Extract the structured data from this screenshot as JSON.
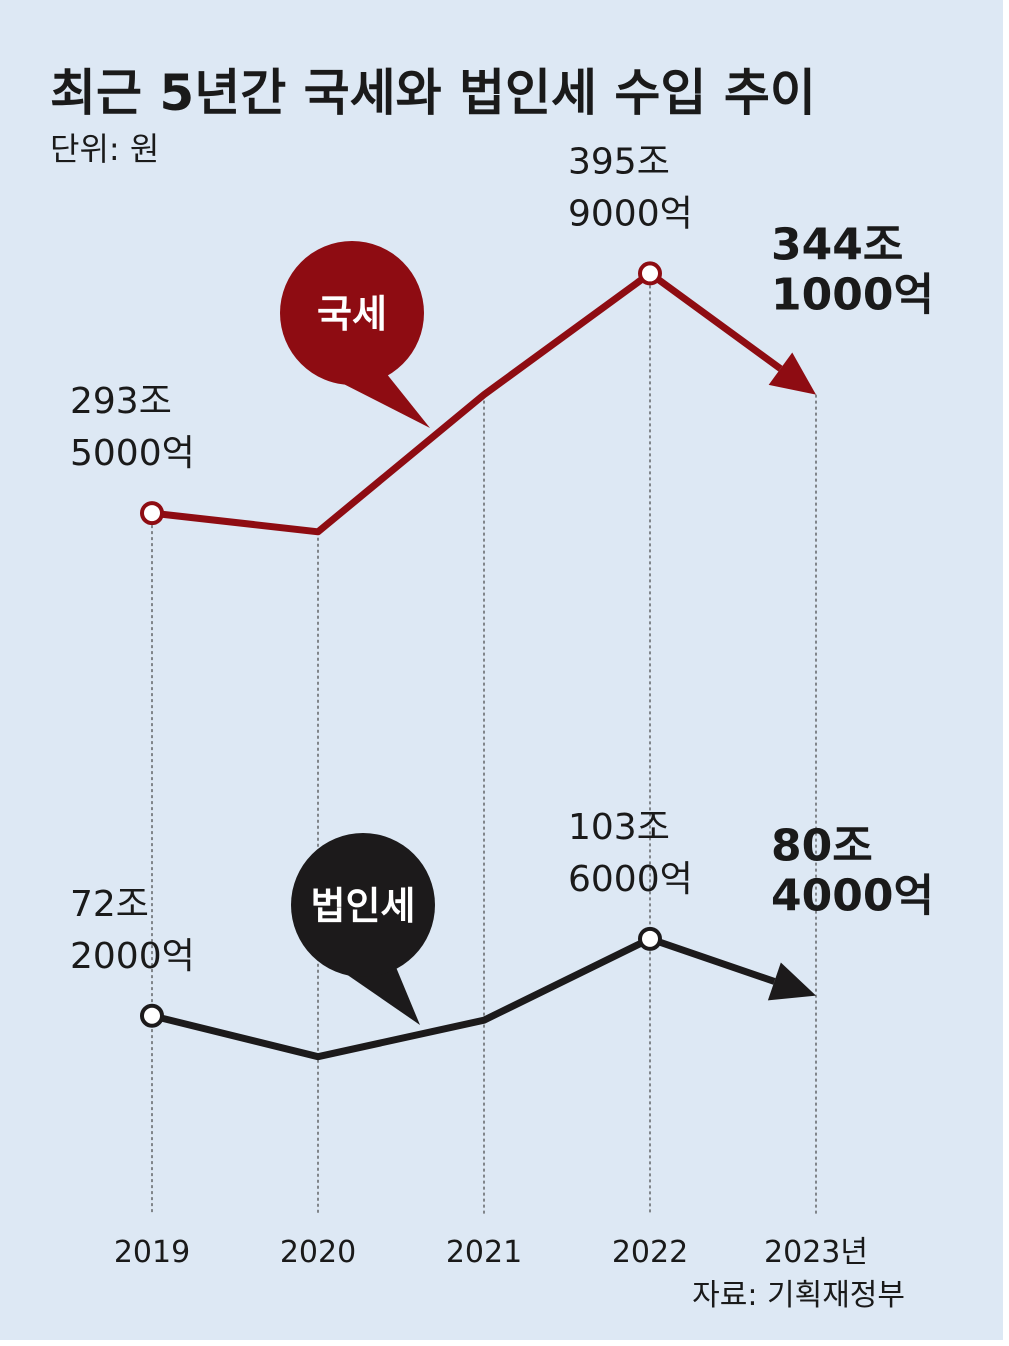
{
  "title": "최근 5년간 국세와 법인세 수입 추이",
  "subtitle": "단위: 원",
  "source": "자료: 기획재정부",
  "chart_data": {
    "type": "line",
    "categories": [
      "2019",
      "2020",
      "2021",
      "2022",
      "2023년"
    ],
    "ylim": [
      0,
      470
    ],
    "y2lim": [
      -3,
      446
    ],
    "series": [
      {
        "name": "국세",
        "color": "#8e0c12",
        "values": [
          293.5,
          285.5,
          344.1,
          395.9,
          344.1
        ],
        "value_labels": [
          "293조 5000억",
          null,
          null,
          "395조 9000억",
          "344조 1000억"
        ]
      },
      {
        "name": "법인세",
        "color": "#1c1a1b",
        "axis": "y2",
        "values": [
          72.2,
          55.5,
          70.4,
          103.6,
          80.4
        ],
        "value_labels": [
          "72조 2000억",
          null,
          null,
          "103조 6000억",
          "80조 4000억"
        ]
      }
    ]
  }
}
